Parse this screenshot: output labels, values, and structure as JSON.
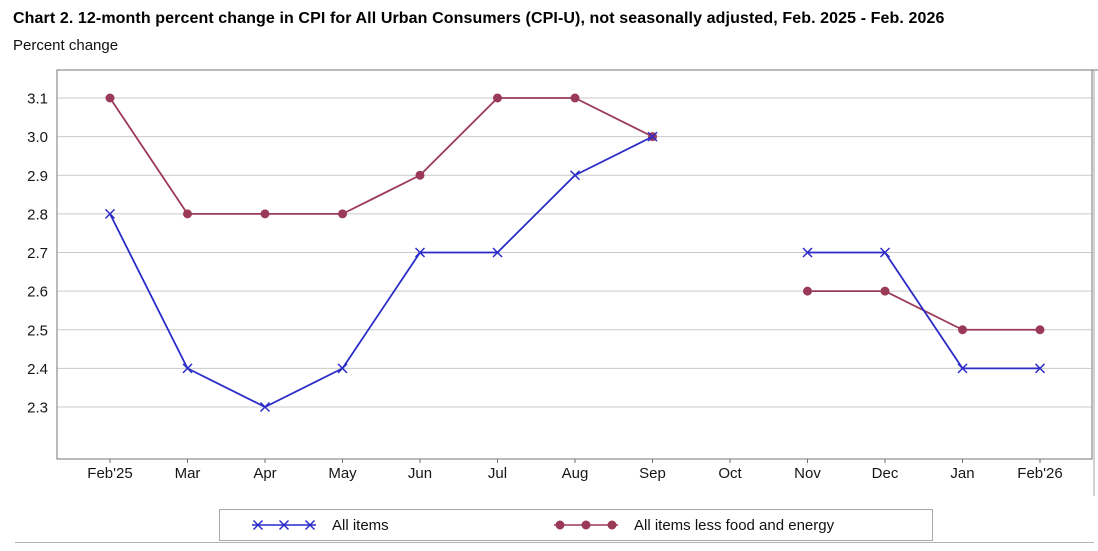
{
  "chart_data": {
    "type": "line",
    "title": "Chart 2. 12-month percent change in CPI for All Urban Consumers (CPI-U), not seasonally adjusted, Feb. 2025 - Feb. 2026",
    "ylabel": "Percent change",
    "xlabel": "",
    "categories": [
      "Feb'25",
      "Mar",
      "Apr",
      "May",
      "Jun",
      "Jul",
      "Aug",
      "Sep",
      "Oct",
      "Nov",
      "Dec",
      "Jan",
      "Feb'26"
    ],
    "y_ticks": [
      3.1,
      3.0,
      2.9,
      2.8,
      2.7,
      2.6,
      2.5,
      2.4,
      2.3
    ],
    "ylim": [
      2.17,
      3.17
    ],
    "grid": "horizontal",
    "legend_position": "bottom",
    "series": [
      {
        "name": "All items",
        "marker": "x",
        "color": "#2b2bc8",
        "values": [
          2.8,
          2.4,
          2.3,
          2.4,
          2.7,
          2.7,
          2.9,
          3.0,
          null,
          2.7,
          2.7,
          2.4,
          2.4
        ]
      },
      {
        "name": "All items less food and energy",
        "marker": "circle",
        "color": "#9b3a58",
        "values": [
          3.1,
          2.8,
          2.8,
          2.8,
          2.9,
          3.1,
          3.1,
          3.0,
          null,
          2.6,
          2.6,
          2.5,
          2.5
        ]
      }
    ],
    "style": {
      "gridline_color": "#c9c9c9",
      "plot_border_color": "#8c8c8c",
      "outer_frame_color": "#b3b3b3",
      "tick_color": "#6e6e6e",
      "text_color": "#161616"
    }
  }
}
